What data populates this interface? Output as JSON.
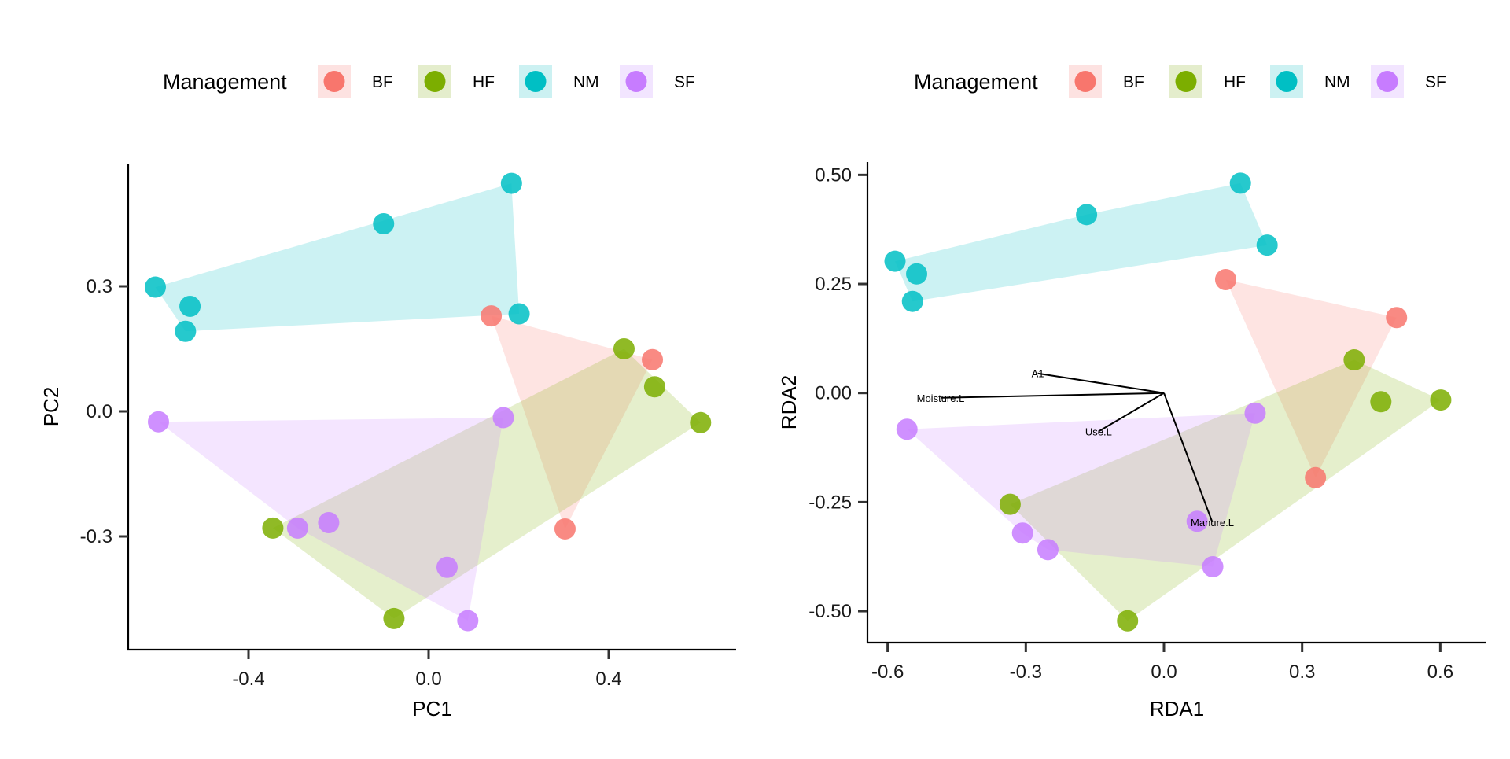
{
  "legend": {
    "title": "Management",
    "groups": [
      {
        "key": "BF",
        "color": "#F8766D",
        "fill": "#FDE2E1"
      },
      {
        "key": "HF",
        "color": "#7CAE00",
        "fill": "#E4EDCC"
      },
      {
        "key": "NM",
        "color": "#00BFC4",
        "fill": "#CCF1F2"
      },
      {
        "key": "SF",
        "color": "#C77CFF",
        "fill": "#F2E5FF"
      }
    ]
  },
  "chart_data": [
    {
      "type": "scatter",
      "title": "",
      "xlabel": "PC1",
      "ylabel": "PC2",
      "xlim": [
        -0.67,
        0.68
      ],
      "ylim": [
        -0.57,
        0.59
      ],
      "xticks": [
        -0.4,
        0.0,
        0.4
      ],
      "xtick_labels": [
        "-0.4",
        "0.0",
        "0.4"
      ],
      "yticks": [
        -0.3,
        0.0,
        0.3
      ],
      "ytick_labels": [
        "-0.3",
        "0.0",
        "0.3"
      ],
      "grid": false,
      "legend_position": "top",
      "hulls": true,
      "series": [
        {
          "name": "BF",
          "points": [
            [
              0.139,
              0.229
            ],
            [
              0.497,
              0.124
            ],
            [
              0.303,
              -0.282
            ]
          ]
        },
        {
          "name": "HF",
          "points": [
            [
              0.434,
              0.15
            ],
            [
              0.502,
              0.059
            ],
            [
              0.604,
              -0.027
            ],
            [
              -0.346,
              -0.28
            ],
            [
              -0.077,
              -0.497
            ]
          ]
        },
        {
          "name": "NM",
          "points": [
            [
              -0.607,
              0.298
            ],
            [
              -0.53,
              0.252
            ],
            [
              -0.54,
              0.192
            ],
            [
              -0.1,
              0.45
            ],
            [
              0.184,
              0.547
            ],
            [
              0.201,
              0.234
            ]
          ]
        },
        {
          "name": "SF",
          "points": [
            [
              -0.6,
              -0.025
            ],
            [
              0.166,
              -0.015
            ],
            [
              -0.291,
              -0.28
            ],
            [
              -0.222,
              -0.267
            ],
            [
              0.041,
              -0.374
            ],
            [
              0.087,
              -0.502
            ]
          ]
        }
      ]
    },
    {
      "type": "scatter",
      "title": "",
      "xlabel": "RDA1",
      "ylabel": "RDA2",
      "xlim": [
        -0.644,
        0.678
      ],
      "ylim": [
        -0.572,
        0.529
      ],
      "xticks": [
        -0.6,
        -0.3,
        0.0,
        0.3,
        0.6
      ],
      "xtick_labels": [
        "-0.6",
        "-0.3",
        "0.0",
        "0.3",
        "0.6"
      ],
      "yticks": [
        -0.5,
        -0.25,
        0.0,
        0.25,
        0.5
      ],
      "ytick_labels": [
        "-0.50",
        "-0.25",
        "0.00",
        "0.25",
        "0.50"
      ],
      "grid": false,
      "legend_position": "top",
      "hulls": true,
      "series": [
        {
          "name": "BF",
          "points": [
            [
              0.134,
              0.26
            ],
            [
              0.505,
              0.173
            ],
            [
              0.329,
              -0.194
            ]
          ]
        },
        {
          "name": "HF",
          "points": [
            [
              0.413,
              0.076
            ],
            [
              0.471,
              -0.02
            ],
            [
              0.601,
              -0.016
            ],
            [
              -0.334,
              -0.255
            ],
            [
              -0.079,
              -0.522
            ]
          ]
        },
        {
          "name": "NM",
          "points": [
            [
              -0.584,
              0.302
            ],
            [
              -0.537,
              0.273
            ],
            [
              -0.546,
              0.21
            ],
            [
              -0.168,
              0.409
            ],
            [
              0.166,
              0.481
            ],
            [
              0.224,
              0.339
            ]
          ]
        },
        {
          "name": "SF",
          "points": [
            [
              -0.558,
              -0.083
            ],
            [
              0.198,
              -0.046
            ],
            [
              -0.307,
              -0.321
            ],
            [
              -0.252,
              -0.359
            ],
            [
              0.072,
              -0.294
            ],
            [
              0.106,
              -0.398
            ]
          ]
        }
      ],
      "vectors": [
        {
          "label": "A1",
          "x": -0.274,
          "y": 0.045
        },
        {
          "label": "Moisture.L",
          "x": -0.485,
          "y": -0.011
        },
        {
          "label": "Use.L",
          "x": -0.142,
          "y": -0.088
        },
        {
          "label": "Manure.L",
          "x": 0.105,
          "y": -0.296
        }
      ]
    }
  ]
}
